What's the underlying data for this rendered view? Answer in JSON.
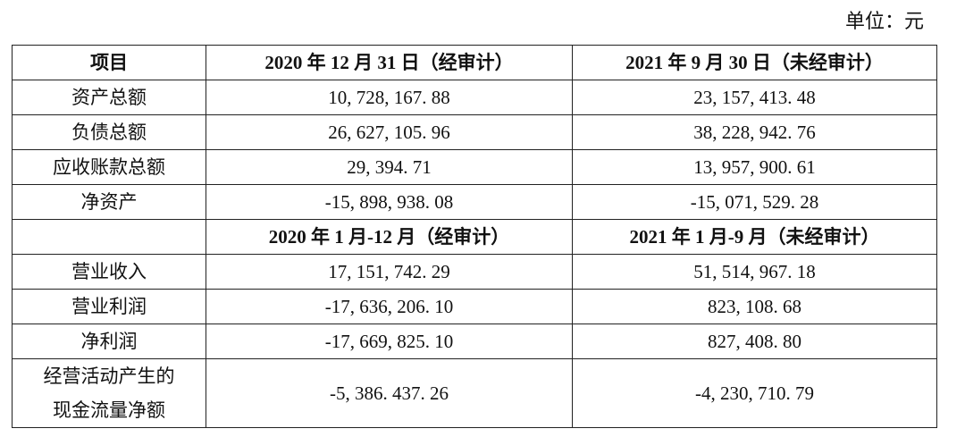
{
  "unit": "单位：元",
  "table": {
    "header": [
      "项目",
      "2020 年 12 月 31 日（经审计）",
      "2021 年 9 月 30 日（未经审计）"
    ],
    "rows": [
      [
        "资产总额",
        "10, 728, 167. 88",
        "23, 157, 413. 48"
      ],
      [
        "负债总额",
        "26, 627, 105. 96",
        "38, 228, 942. 76"
      ],
      [
        "应收账款总额",
        "29, 394. 71",
        "13, 957, 900. 61"
      ],
      [
        "净资产",
        "-15, 898, 938. 08",
        "-15, 071, 529. 28"
      ]
    ],
    "subheader": [
      "2020 年 1 月-12 月（经审计）",
      "2021 年 1 月-9 月（未经审计）"
    ],
    "rows2": [
      [
        "营业收入",
        "17, 151, 742. 29",
        "51, 514, 967. 18"
      ],
      [
        "营业利润",
        "-17, 636, 206. 10",
        "823, 108. 68"
      ],
      [
        "净利润",
        "-17, 669, 825. 10",
        "827, 408. 80"
      ],
      [
        [
          "经营活动产生的",
          "现金流量净额"
        ],
        "-5, 386. 437. 26",
        "-4, 230, 710. 79"
      ]
    ]
  }
}
